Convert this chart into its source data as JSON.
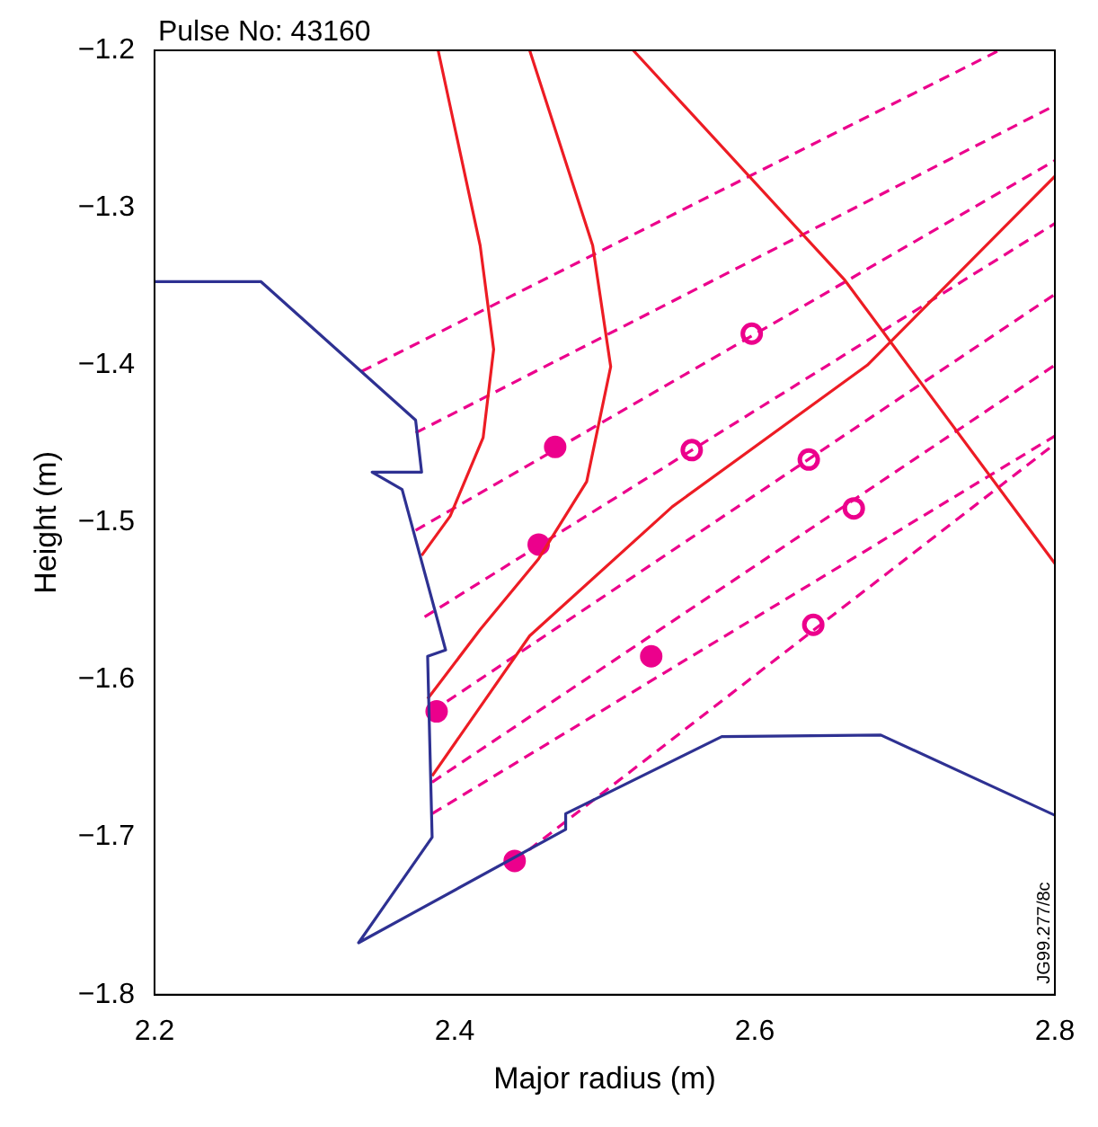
{
  "chart_data": {
    "type": "line",
    "xlabel": "Major radius (m)",
    "ylabel": "Height (m)",
    "annotations": [
      "Pulse No: 43160",
      "JG99.277/8c"
    ],
    "xlim": [
      2.2,
      2.8
    ],
    "ylim": [
      -1.8,
      -1.2
    ],
    "xticks": [
      2.2,
      2.4,
      2.6,
      2.8
    ],
    "yticks": [
      -1.8,
      -1.7,
      -1.6,
      -1.5,
      -1.4,
      -1.3,
      -1.2
    ],
    "grid": false,
    "legend": false,
    "marker": "none",
    "series": [
      {
        "color": "#2e3192",
        "line_style": "solid",
        "x": [
          2.2,
          2.271,
          2.374,
          2.378,
          2.345,
          2.365,
          2.394,
          2.382,
          2.385,
          2.336,
          2.474,
          2.474,
          2.578,
          2.684,
          2.8
        ],
        "values": [
          -1.347,
          -1.347,
          -1.435,
          -1.468,
          -1.468,
          -1.479,
          -1.581,
          -1.585,
          -1.7,
          -1.767,
          -1.695,
          -1.685,
          -1.636,
          -1.635,
          -1.686
        ]
      },
      {
        "color": "#ed1c24",
        "line_style": "solid",
        "x": [
          2.389,
          2.417,
          2.426,
          2.419,
          2.397,
          2.378
        ],
        "values": [
          -1.2,
          -1.324,
          -1.39,
          -1.446,
          -1.496,
          -1.521
        ]
      },
      {
        "color": "#ed1c24",
        "line_style": "solid",
        "x": [
          2.45,
          2.492,
          2.504,
          2.488,
          2.456,
          2.417,
          2.382
        ],
        "values": [
          -1.2,
          -1.324,
          -1.401,
          -1.474,
          -1.523,
          -1.568,
          -1.612
        ]
      },
      {
        "color": "#ed1c24",
        "line_style": "solid",
        "x": [
          2.385,
          2.45,
          2.545,
          2.675,
          2.8
        ],
        "values": [
          -1.661,
          -1.572,
          -1.49,
          -1.4,
          -1.28
        ]
      },
      {
        "color": "#ed1c24",
        "line_style": "solid",
        "x": [
          2.519,
          2.66,
          2.8
        ],
        "values": [
          -1.2,
          -1.346,
          -1.526
        ]
      },
      {
        "color": "#ec008c",
        "line_style": "dashed",
        "x": [
          2.338,
          2.763
        ],
        "values": [
          -1.404,
          -1.2
        ]
      },
      {
        "color": "#ec008c",
        "line_style": "dashed",
        "x": [
          2.374,
          2.8
        ],
        "values": [
          -1.443,
          -1.235
        ]
      },
      {
        "color": "#ec008c",
        "line_style": "dashed",
        "x": [
          2.374,
          2.8
        ],
        "values": [
          -1.505,
          -1.27
        ]
      },
      {
        "color": "#ec008c",
        "line_style": "dashed",
        "x": [
          2.38,
          2.8
        ],
        "values": [
          -1.56,
          -1.31
        ]
      },
      {
        "color": "#ec008c",
        "line_style": "dashed",
        "x": [
          2.385,
          2.8
        ],
        "values": [
          -1.62,
          -1.355
        ]
      },
      {
        "color": "#ec008c",
        "line_style": "dashed",
        "x": [
          2.385,
          2.8
        ],
        "values": [
          -1.665,
          -1.4
        ]
      },
      {
        "color": "#ec008c",
        "line_style": "dashed",
        "x": [
          2.385,
          2.8
        ],
        "values": [
          -1.685,
          -1.445
        ]
      },
      {
        "color": "#ec008c",
        "line_style": "dashed",
        "x": [
          2.44,
          2.8
        ],
        "values": [
          -1.715,
          -1.45
        ]
      },
      {
        "type": "scatter",
        "color": "#ec008c",
        "marker": "circle",
        "x": [
          2.467,
          2.456,
          2.388,
          2.531,
          2.44
        ],
        "values": [
          -1.452,
          -1.514,
          -1.62,
          -1.585,
          -1.715
        ]
      },
      {
        "type": "scatter",
        "color": "#ec008c",
        "marker": "circle",
        "x": [
          2.598,
          2.558,
          2.636,
          2.666,
          2.639
        ],
        "values": [
          -1.38,
          -1.454,
          -1.46,
          -1.491,
          -1.565
        ]
      }
    ]
  }
}
